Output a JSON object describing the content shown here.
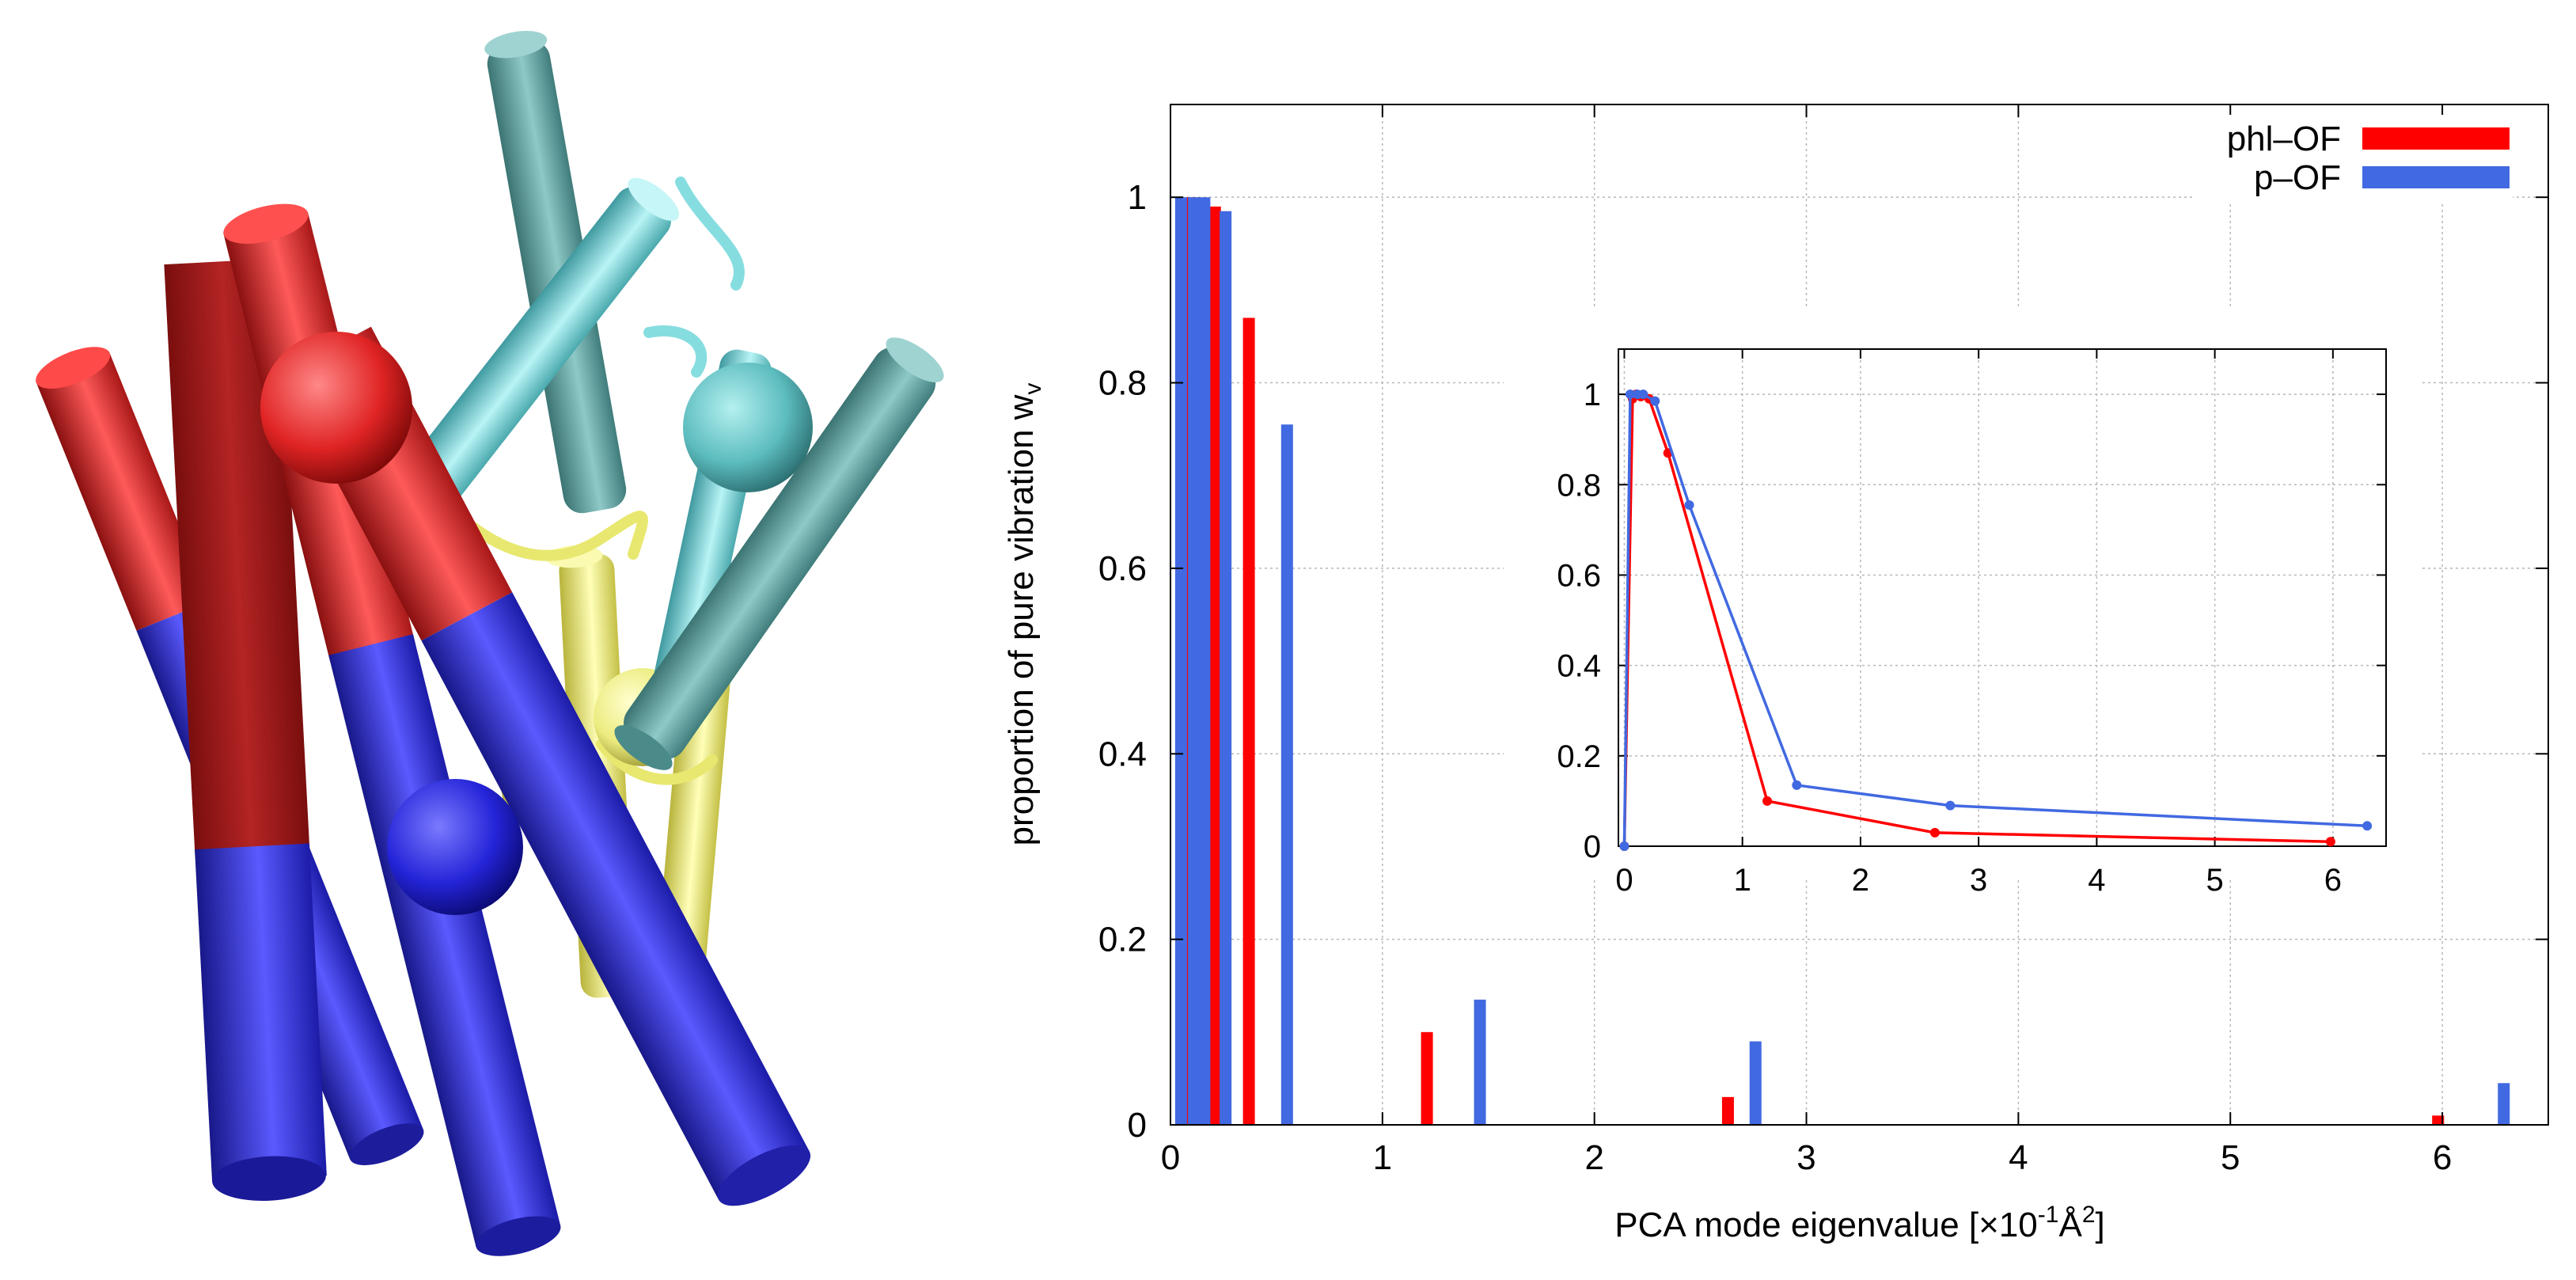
{
  "chart_data": [
    {
      "type": "bar",
      "title": "",
      "xlabel": "PCA mode eigenvalue [×10",
      "xlabel_sup1": "-1",
      "xlabel_mid": "Å",
      "xlabel_sup2": "2",
      "xlabel_end": "]",
      "ylabel": "proportion of pure vibration w",
      "ylabel_sub": "v",
      "xlim": [
        0,
        6.5
      ],
      "ylim": [
        0,
        1.1
      ],
      "xticks": [
        0,
        1,
        2,
        3,
        4,
        5,
        6
      ],
      "yticks": [
        0,
        0.2,
        0.4,
        0.6,
        0.8,
        1
      ],
      "grid": true,
      "legend_position": "top-right",
      "series": [
        {
          "name": "phl–OF",
          "color": "#ff0000",
          "x": [
            0.1,
            0.21,
            0.37,
            1.21,
            2.63,
            5.98
          ],
          "values": [
            1.0,
            0.99,
            0.87,
            0.1,
            0.03,
            0.01
          ]
        },
        {
          "name": "p–OF",
          "color": "#4169e1",
          "x": [
            0.05,
            0.11,
            0.16,
            0.26,
            0.55,
            1.46,
            2.76,
            6.29
          ],
          "values": [
            1.0,
            1.0,
            1.0,
            0.985,
            0.755,
            0.135,
            0.09,
            0.045
          ]
        }
      ]
    },
    {
      "type": "line",
      "title": "",
      "xlim": [
        -0.05,
        6.45
      ],
      "ylim": [
        0,
        1.1
      ],
      "xticks": [
        0,
        1,
        2,
        3,
        4,
        5,
        6
      ],
      "yticks": [
        0,
        0.2,
        0.4,
        0.6,
        0.8,
        1
      ],
      "grid": true,
      "series": [
        {
          "name": "phl–OF",
          "color": "#ff0000",
          "x": [
            0,
            0.07,
            0.1,
            0.14,
            0.21,
            0.37,
            1.21,
            2.63,
            5.98
          ],
          "values": [
            0,
            0.99,
            1.0,
            0.995,
            0.99,
            0.87,
            0.1,
            0.03,
            0.01
          ]
        },
        {
          "name": "p–OF",
          "color": "#4169e1",
          "x": [
            0,
            0.05,
            0.11,
            0.16,
            0.26,
            0.55,
            1.46,
            2.76,
            6.29
          ],
          "values": [
            0,
            1.0,
            1.0,
            1.0,
            0.985,
            0.755,
            0.135,
            0.09,
            0.045
          ]
        }
      ]
    }
  ],
  "molecule": {
    "description_colors": {
      "red": "#e83434",
      "dark_red": "#9a1a1a",
      "blue": "#2a2ae0",
      "cyan": "#7ed6d8",
      "teal": "#5fa8a6",
      "yellow": "#f2f08a"
    }
  }
}
